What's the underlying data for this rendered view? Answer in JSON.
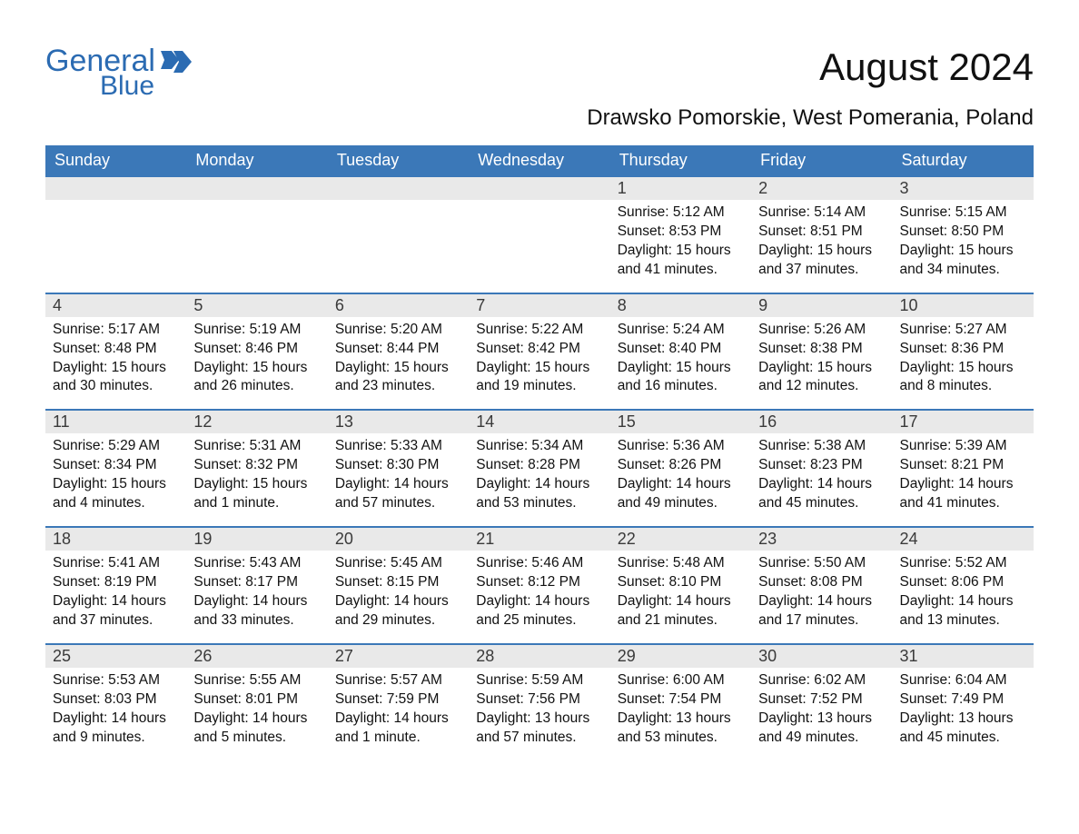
{
  "brand": {
    "word1": "General",
    "word2": "Blue",
    "brand_color": "#2b6bb2"
  },
  "title": "August 2024",
  "location": "Drawsko Pomorskie, West Pomerania, Poland",
  "colors": {
    "header_bg": "#3b78b8",
    "header_text": "#ffffff",
    "daynum_bg": "#e9e9e9",
    "daynum_text": "#3a3a3a",
    "body_text": "#111111",
    "page_bg": "#ffffff",
    "rule": "#3b78b8"
  },
  "typography": {
    "month_title_fontsize": 42,
    "location_fontsize": 24,
    "header_fontsize": 18,
    "daynum_fontsize": 18,
    "body_fontsize": 15.5,
    "font_family": "Arial"
  },
  "labels": {
    "sunrise": "Sunrise:",
    "sunset": "Sunset:",
    "daylight": "Daylight:"
  },
  "day_header": [
    "Sunday",
    "Monday",
    "Tuesday",
    "Wednesday",
    "Thursday",
    "Friday",
    "Saturday"
  ],
  "weeks": [
    [
      null,
      null,
      null,
      null,
      {
        "n": "1",
        "sunrise": "5:12 AM",
        "sunset": "8:53 PM",
        "daylight": "15 hours and 41 minutes."
      },
      {
        "n": "2",
        "sunrise": "5:14 AM",
        "sunset": "8:51 PM",
        "daylight": "15 hours and 37 minutes."
      },
      {
        "n": "3",
        "sunrise": "5:15 AM",
        "sunset": "8:50 PM",
        "daylight": "15 hours and 34 minutes."
      }
    ],
    [
      {
        "n": "4",
        "sunrise": "5:17 AM",
        "sunset": "8:48 PM",
        "daylight": "15 hours and 30 minutes."
      },
      {
        "n": "5",
        "sunrise": "5:19 AM",
        "sunset": "8:46 PM",
        "daylight": "15 hours and 26 minutes."
      },
      {
        "n": "6",
        "sunrise": "5:20 AM",
        "sunset": "8:44 PM",
        "daylight": "15 hours and 23 minutes."
      },
      {
        "n": "7",
        "sunrise": "5:22 AM",
        "sunset": "8:42 PM",
        "daylight": "15 hours and 19 minutes."
      },
      {
        "n": "8",
        "sunrise": "5:24 AM",
        "sunset": "8:40 PM",
        "daylight": "15 hours and 16 minutes."
      },
      {
        "n": "9",
        "sunrise": "5:26 AM",
        "sunset": "8:38 PM",
        "daylight": "15 hours and 12 minutes."
      },
      {
        "n": "10",
        "sunrise": "5:27 AM",
        "sunset": "8:36 PM",
        "daylight": "15 hours and 8 minutes."
      }
    ],
    [
      {
        "n": "11",
        "sunrise": "5:29 AM",
        "sunset": "8:34 PM",
        "daylight": "15 hours and 4 minutes."
      },
      {
        "n": "12",
        "sunrise": "5:31 AM",
        "sunset": "8:32 PM",
        "daylight": "15 hours and 1 minute."
      },
      {
        "n": "13",
        "sunrise": "5:33 AM",
        "sunset": "8:30 PM",
        "daylight": "14 hours and 57 minutes."
      },
      {
        "n": "14",
        "sunrise": "5:34 AM",
        "sunset": "8:28 PM",
        "daylight": "14 hours and 53 minutes."
      },
      {
        "n": "15",
        "sunrise": "5:36 AM",
        "sunset": "8:26 PM",
        "daylight": "14 hours and 49 minutes."
      },
      {
        "n": "16",
        "sunrise": "5:38 AM",
        "sunset": "8:23 PM",
        "daylight": "14 hours and 45 minutes."
      },
      {
        "n": "17",
        "sunrise": "5:39 AM",
        "sunset": "8:21 PM",
        "daylight": "14 hours and 41 minutes."
      }
    ],
    [
      {
        "n": "18",
        "sunrise": "5:41 AM",
        "sunset": "8:19 PM",
        "daylight": "14 hours and 37 minutes."
      },
      {
        "n": "19",
        "sunrise": "5:43 AM",
        "sunset": "8:17 PM",
        "daylight": "14 hours and 33 minutes."
      },
      {
        "n": "20",
        "sunrise": "5:45 AM",
        "sunset": "8:15 PM",
        "daylight": "14 hours and 29 minutes."
      },
      {
        "n": "21",
        "sunrise": "5:46 AM",
        "sunset": "8:12 PM",
        "daylight": "14 hours and 25 minutes."
      },
      {
        "n": "22",
        "sunrise": "5:48 AM",
        "sunset": "8:10 PM",
        "daylight": "14 hours and 21 minutes."
      },
      {
        "n": "23",
        "sunrise": "5:50 AM",
        "sunset": "8:08 PM",
        "daylight": "14 hours and 17 minutes."
      },
      {
        "n": "24",
        "sunrise": "5:52 AM",
        "sunset": "8:06 PM",
        "daylight": "14 hours and 13 minutes."
      }
    ],
    [
      {
        "n": "25",
        "sunrise": "5:53 AM",
        "sunset": "8:03 PM",
        "daylight": "14 hours and 9 minutes."
      },
      {
        "n": "26",
        "sunrise": "5:55 AM",
        "sunset": "8:01 PM",
        "daylight": "14 hours and 5 minutes."
      },
      {
        "n": "27",
        "sunrise": "5:57 AM",
        "sunset": "7:59 PM",
        "daylight": "14 hours and 1 minute."
      },
      {
        "n": "28",
        "sunrise": "5:59 AM",
        "sunset": "7:56 PM",
        "daylight": "13 hours and 57 minutes."
      },
      {
        "n": "29",
        "sunrise": "6:00 AM",
        "sunset": "7:54 PM",
        "daylight": "13 hours and 53 minutes."
      },
      {
        "n": "30",
        "sunrise": "6:02 AM",
        "sunset": "7:52 PM",
        "daylight": "13 hours and 49 minutes."
      },
      {
        "n": "31",
        "sunrise": "6:04 AM",
        "sunset": "7:49 PM",
        "daylight": "13 hours and 45 minutes."
      }
    ]
  ]
}
